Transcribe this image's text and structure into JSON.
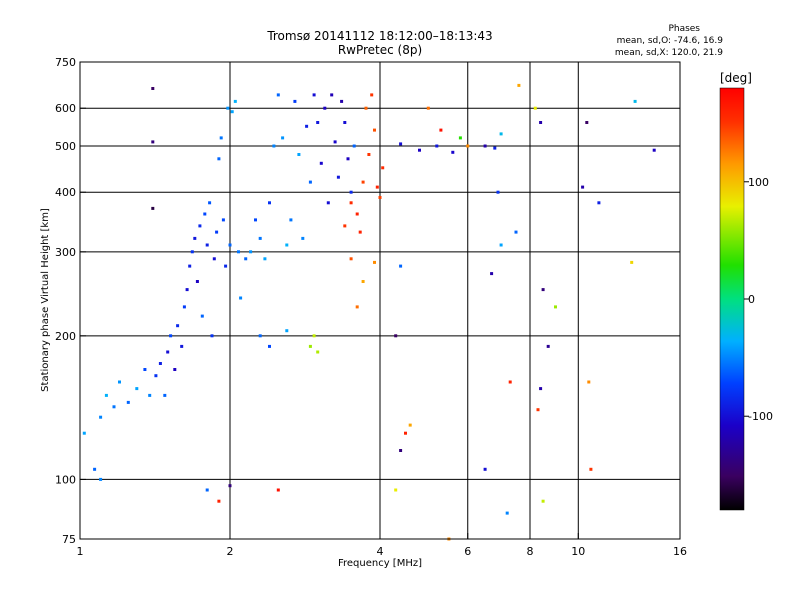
{
  "header": {
    "title_line1": "Tromsø 20141112 18:12:00–18:13:43",
    "title_line2": "RwPretec (8p)"
  },
  "stats": {
    "heading": "Phases",
    "line_o": "mean, sd,O: -74.6, 16.9",
    "line_x": "mean, sd,X: 120.0, 21.9"
  },
  "colorbar": {
    "unit_label": "[deg]",
    "range": [
      -180,
      180
    ],
    "ticks": [
      {
        "value": 100,
        "label": "100"
      },
      {
        "value": 0,
        "label": "0"
      },
      {
        "value": -100,
        "label": "-100"
      }
    ]
  },
  "chart_data": {
    "type": "scatter",
    "title": "Tromsø 20141112 18:12:00–18:13:43",
    "subtitle": "RwPretec (8p)",
    "xlabel": "Frequency [MHz]",
    "ylabel": "Stationary phase Virtual Height [km]",
    "xscale": "log",
    "yscale": "log",
    "xlim": [
      1,
      16
    ],
    "ylim": [
      75,
      750
    ],
    "x_ticks": [
      {
        "value": 1,
        "label": "1"
      },
      {
        "value": 2,
        "label": "2"
      },
      {
        "value": 4,
        "label": "4"
      },
      {
        "value": 6,
        "label": "6"
      },
      {
        "value": 8,
        "label": "8"
      },
      {
        "value": 10,
        "label": "10"
      },
      {
        "value": 16,
        "label": "16"
      }
    ],
    "y_ticks": [
      {
        "value": 75,
        "label": "75"
      },
      {
        "value": 100,
        "label": "100"
      },
      {
        "value": 200,
        "label": "200"
      },
      {
        "value": 300,
        "label": "300"
      },
      {
        "value": 400,
        "label": "400"
      },
      {
        "value": 500,
        "label": "500"
      },
      {
        "value": 600,
        "label": "600"
      },
      {
        "value": 750,
        "label": "750"
      }
    ],
    "grid_x": [
      2,
      4,
      6,
      8,
      10
    ],
    "grid_y": [
      100,
      200,
      300,
      400,
      500,
      600
    ],
    "color_scale": "rainbow",
    "color_range": [
      -180,
      180
    ],
    "points": [
      {
        "f": 1.02,
        "h": 125,
        "p": -40
      },
      {
        "f": 1.07,
        "h": 105,
        "p": -60
      },
      {
        "f": 1.1,
        "h": 135,
        "p": -50
      },
      {
        "f": 1.13,
        "h": 150,
        "p": -35
      },
      {
        "f": 1.17,
        "h": 142,
        "p": -55
      },
      {
        "f": 1.2,
        "h": 160,
        "p": -45
      },
      {
        "f": 1.25,
        "h": 145,
        "p": -60
      },
      {
        "f": 1.3,
        "h": 155,
        "p": -40
      },
      {
        "f": 1.35,
        "h": 170,
        "p": -70
      },
      {
        "f": 1.38,
        "h": 150,
        "p": -50
      },
      {
        "f": 1.42,
        "h": 165,
        "p": -80
      },
      {
        "f": 1.45,
        "h": 175,
        "p": -90
      },
      {
        "f": 1.48,
        "h": 150,
        "p": -60
      },
      {
        "f": 1.5,
        "h": 185,
        "p": -100
      },
      {
        "f": 1.52,
        "h": 200,
        "p": -70
      },
      {
        "f": 1.55,
        "h": 170,
        "p": -110
      },
      {
        "f": 1.57,
        "h": 210,
        "p": -85
      },
      {
        "f": 1.6,
        "h": 190,
        "p": -95
      },
      {
        "f": 1.62,
        "h": 230,
        "p": -75
      },
      {
        "f": 1.64,
        "h": 250,
        "p": -100
      },
      {
        "f": 1.66,
        "h": 280,
        "p": -90
      },
      {
        "f": 1.68,
        "h": 300,
        "p": -80
      },
      {
        "f": 1.7,
        "h": 320,
        "p": -95
      },
      {
        "f": 1.72,
        "h": 260,
        "p": -110
      },
      {
        "f": 1.74,
        "h": 340,
        "p": -85
      },
      {
        "f": 1.76,
        "h": 220,
        "p": -60
      },
      {
        "f": 1.78,
        "h": 360,
        "p": -70
      },
      {
        "f": 1.8,
        "h": 310,
        "p": -90
      },
      {
        "f": 1.82,
        "h": 380,
        "p": -65
      },
      {
        "f": 1.84,
        "h": 200,
        "p": -80
      },
      {
        "f": 1.86,
        "h": 290,
        "p": -100
      },
      {
        "f": 1.88,
        "h": 330,
        "p": -75
      },
      {
        "f": 1.9,
        "h": 470,
        "p": -60
      },
      {
        "f": 1.92,
        "h": 520,
        "p": -55
      },
      {
        "f": 1.94,
        "h": 350,
        "p": -70
      },
      {
        "f": 1.96,
        "h": 280,
        "p": -85
      },
      {
        "f": 1.98,
        "h": 600,
        "p": -45
      },
      {
        "f": 2.0,
        "h": 310,
        "p": -60
      },
      {
        "f": 2.02,
        "h": 590,
        "p": -40
      },
      {
        "f": 2.05,
        "h": 620,
        "p": -35
      },
      {
        "f": 2.08,
        "h": 300,
        "p": -55
      },
      {
        "f": 2.1,
        "h": 240,
        "p": -50
      },
      {
        "f": 2.15,
        "h": 290,
        "p": -60
      },
      {
        "f": 2.2,
        "h": 300,
        "p": -45
      },
      {
        "f": 2.25,
        "h": 350,
        "p": -70
      },
      {
        "f": 2.3,
        "h": 320,
        "p": -55
      },
      {
        "f": 2.35,
        "h": 290,
        "p": -40
      },
      {
        "f": 2.4,
        "h": 380,
        "p": -80
      },
      {
        "f": 2.45,
        "h": 500,
        "p": -50
      },
      {
        "f": 2.5,
        "h": 640,
        "p": -60
      },
      {
        "f": 2.55,
        "h": 520,
        "p": -45
      },
      {
        "f": 2.6,
        "h": 310,
        "p": -35
      },
      {
        "f": 2.65,
        "h": 350,
        "p": -55
      },
      {
        "f": 2.7,
        "h": 620,
        "p": -75
      },
      {
        "f": 2.75,
        "h": 480,
        "p": -40
      },
      {
        "f": 2.8,
        "h": 320,
        "p": -50
      },
      {
        "f": 2.85,
        "h": 550,
        "p": -90
      },
      {
        "f": 2.9,
        "h": 420,
        "p": -60
      },
      {
        "f": 2.95,
        "h": 640,
        "p": -100
      },
      {
        "f": 3.0,
        "h": 560,
        "p": -95
      },
      {
        "f": 3.05,
        "h": 460,
        "p": -105
      },
      {
        "f": 3.1,
        "h": 600,
        "p": -110
      },
      {
        "f": 3.15,
        "h": 380,
        "p": -100
      },
      {
        "f": 3.2,
        "h": 640,
        "p": -115
      },
      {
        "f": 3.25,
        "h": 510,
        "p": -105
      },
      {
        "f": 3.3,
        "h": 430,
        "p": -95
      },
      {
        "f": 3.35,
        "h": 620,
        "p": -120
      },
      {
        "f": 3.4,
        "h": 560,
        "p": -100
      },
      {
        "f": 3.45,
        "h": 470,
        "p": -110
      },
      {
        "f": 3.5,
        "h": 400,
        "p": -85
      },
      {
        "f": 3.4,
        "h": 340,
        "p": 150
      },
      {
        "f": 3.5,
        "h": 380,
        "p": 155
      },
      {
        "f": 3.6,
        "h": 360,
        "p": 160
      },
      {
        "f": 3.7,
        "h": 420,
        "p": 145
      },
      {
        "f": 3.8,
        "h": 480,
        "p": 150
      },
      {
        "f": 3.9,
        "h": 540,
        "p": 140
      },
      {
        "f": 3.75,
        "h": 600,
        "p": 135
      },
      {
        "f": 3.85,
        "h": 640,
        "p": 150
      },
      {
        "f": 3.95,
        "h": 410,
        "p": 160
      },
      {
        "f": 4.05,
        "h": 450,
        "p": 155
      },
      {
        "f": 4.0,
        "h": 390,
        "p": 145
      },
      {
        "f": 3.65,
        "h": 330,
        "p": 160
      },
      {
        "f": 3.55,
        "h": 500,
        "p": -60
      },
      {
        "f": 2.9,
        "h": 190,
        "p": 60
      },
      {
        "f": 2.95,
        "h": 200,
        "p": 70
      },
      {
        "f": 3.0,
        "h": 185,
        "p": 65
      },
      {
        "f": 2.4,
        "h": 190,
        "p": -70
      },
      {
        "f": 2.6,
        "h": 205,
        "p": -40
      },
      {
        "f": 2.3,
        "h": 200,
        "p": -60
      },
      {
        "f": 4.4,
        "h": 505,
        "p": -100
      },
      {
        "f": 4.8,
        "h": 490,
        "p": -110
      },
      {
        "f": 5.2,
        "h": 500,
        "p": -95
      },
      {
        "f": 5.6,
        "h": 485,
        "p": -105
      },
      {
        "f": 6.0,
        "h": 500,
        "p": 120
      },
      {
        "f": 5.8,
        "h": 520,
        "p": 30
      },
      {
        "f": 6.5,
        "h": 500,
        "p": -120
      },
      {
        "f": 6.8,
        "h": 495,
        "p": -90
      },
      {
        "f": 1.4,
        "h": 660,
        "p": -150
      },
      {
        "f": 1.4,
        "h": 510,
        "p": -140
      },
      {
        "f": 1.4,
        "h": 370,
        "p": -160
      },
      {
        "f": 1.8,
        "h": 95,
        "p": -60
      },
      {
        "f": 1.9,
        "h": 90,
        "p": 160
      },
      {
        "f": 2.0,
        "h": 97,
        "p": -140
      },
      {
        "f": 2.5,
        "h": 95,
        "p": 170
      },
      {
        "f": 1.1,
        "h": 100,
        "p": -50
      },
      {
        "f": 3.5,
        "h": 290,
        "p": 140
      },
      {
        "f": 3.7,
        "h": 260,
        "p": 110
      },
      {
        "f": 3.6,
        "h": 230,
        "p": 130
      },
      {
        "f": 3.9,
        "h": 285,
        "p": 120
      },
      {
        "f": 4.4,
        "h": 280,
        "p": -60
      },
      {
        "f": 4.3,
        "h": 200,
        "p": -150
      },
      {
        "f": 4.4,
        "h": 115,
        "p": -140
      },
      {
        "f": 4.5,
        "h": 125,
        "p": 160
      },
      {
        "f": 4.6,
        "h": 130,
        "p": 110
      },
      {
        "f": 4.3,
        "h": 95,
        "p": 80
      },
      {
        "f": 5.5,
        "h": 75,
        "p": 120
      },
      {
        "f": 6.5,
        "h": 105,
        "p": -100
      },
      {
        "f": 7.2,
        "h": 85,
        "p": -50
      },
      {
        "f": 7.3,
        "h": 160,
        "p": 160
      },
      {
        "f": 8.5,
        "h": 90,
        "p": 70
      },
      {
        "f": 8.3,
        "h": 140,
        "p": 150
      },
      {
        "f": 8.4,
        "h": 155,
        "p": -120
      },
      {
        "f": 8.5,
        "h": 250,
        "p": -140
      },
      {
        "f": 8.7,
        "h": 190,
        "p": -130
      },
      {
        "f": 9.0,
        "h": 230,
        "p": 60
      },
      {
        "f": 8.4,
        "h": 560,
        "p": -120
      },
      {
        "f": 8.2,
        "h": 600,
        "p": 80
      },
      {
        "f": 7.0,
        "h": 530,
        "p": -30
      },
      {
        "f": 10.5,
        "h": 160,
        "p": 120
      },
      {
        "f": 10.6,
        "h": 105,
        "p": 150
      },
      {
        "f": 10.2,
        "h": 410,
        "p": -120
      },
      {
        "f": 10.4,
        "h": 560,
        "p": -150
      },
      {
        "f": 11.0,
        "h": 380,
        "p": -90
      },
      {
        "f": 12.8,
        "h": 285,
        "p": 90
      },
      {
        "f": 13.0,
        "h": 620,
        "p": -30
      },
      {
        "f": 14.2,
        "h": 490,
        "p": -110
      },
      {
        "f": 7.5,
        "h": 330,
        "p": -60
      },
      {
        "f": 6.9,
        "h": 400,
        "p": -80
      },
      {
        "f": 7.0,
        "h": 310,
        "p": -40
      },
      {
        "f": 6.7,
        "h": 270,
        "p": -120
      },
      {
        "f": 7.6,
        "h": 670,
        "p": 110
      },
      {
        "f": 5.0,
        "h": 600,
        "p": 130
      },
      {
        "f": 5.3,
        "h": 540,
        "p": 170
      }
    ]
  }
}
